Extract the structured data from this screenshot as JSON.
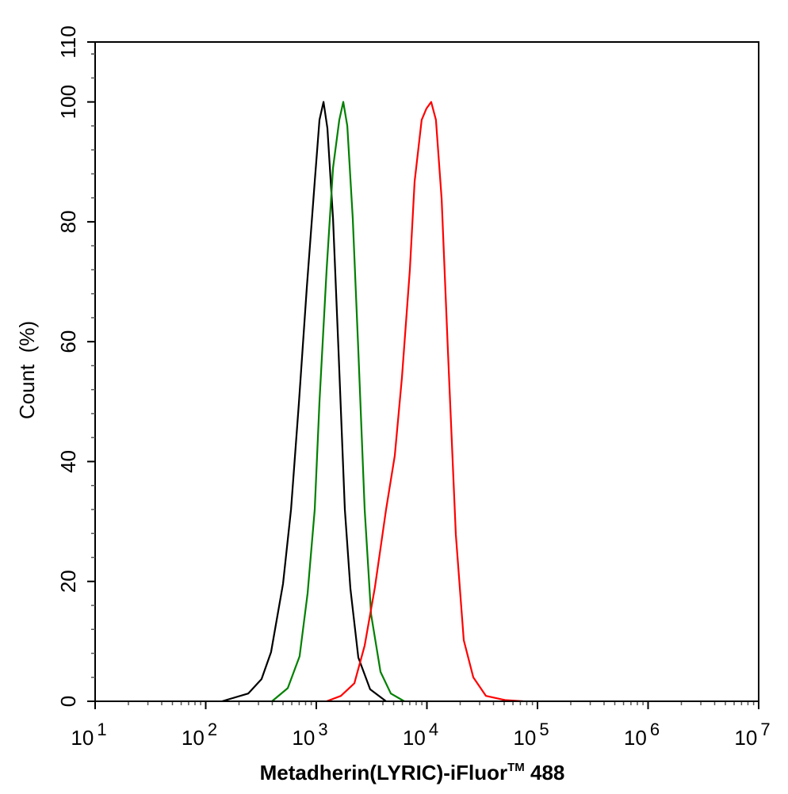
{
  "chart_data": {
    "type": "line",
    "title": "",
    "xlabel": "Metadherin(LYRIC)-iFluor",
    "xlabel_superscript": "TM",
    "xlabel_suffix": " 488",
    "ylabel": "Count  (%)",
    "xscale": "log",
    "xlim": [
      10,
      10000000
    ],
    "ylim": [
      0,
      110
    ],
    "x_ticks": [
      {
        "base": "10",
        "exp": "1",
        "value": 1
      },
      {
        "base": "10",
        "exp": "2",
        "value": 2
      },
      {
        "base": "10",
        "exp": "3",
        "value": 3
      },
      {
        "base": "10",
        "exp": "4",
        "value": 4
      },
      {
        "base": "10",
        "exp": "5",
        "value": 5
      },
      {
        "base": "10",
        "exp": "6",
        "value": 6
      },
      {
        "base": "10",
        "exp": "7",
        "value": 7
      }
    ],
    "y_ticks": [
      "0",
      "20",
      "40",
      "60",
      "80",
      "100",
      "110"
    ],
    "y_tick_values": [
      0,
      20,
      40,
      60,
      80,
      100,
      110
    ],
    "y_minor_step": 4,
    "grid": false,
    "legend": "none",
    "x_values_are": "log10 of fluorescence intensity",
    "series": [
      {
        "name": "black",
        "color": "#000000",
        "x": [
          2.147,
          2.384,
          2.505,
          2.591,
          2.699,
          2.771,
          2.842,
          2.914,
          2.986,
          3.029,
          3.065,
          3.1,
          3.151,
          3.201,
          3.258,
          3.308,
          3.38,
          3.487,
          3.631
        ],
        "y": [
          0,
          1.3,
          3.7,
          8.2,
          19.6,
          32,
          49.7,
          69,
          86.7,
          97,
          100,
          95.6,
          80.5,
          58.5,
          32,
          18.8,
          7.3,
          2,
          0
        ]
      },
      {
        "name": "green",
        "color": "#008000",
        "x": [
          2.599,
          2.742,
          2.849,
          2.921,
          2.986,
          3.029,
          3.093,
          3.151,
          3.208,
          3.244,
          3.28,
          3.33,
          3.38,
          3.437,
          3.495,
          3.581,
          3.674,
          3.796
        ],
        "y": [
          0,
          2.2,
          7.5,
          18,
          32,
          50,
          72,
          89,
          97,
          100,
          96,
          80.5,
          58.5,
          32,
          14.5,
          4.9,
          1.3,
          0
        ]
      },
      {
        "name": "red",
        "color": "#ff0000",
        "x": [
          3.093,
          3.222,
          3.344,
          3.437,
          3.53,
          3.631,
          3.71,
          3.774,
          3.846,
          3.889,
          3.953,
          3.996,
          4.039,
          4.082,
          4.133,
          4.19,
          4.262,
          4.333,
          4.419,
          4.534,
          4.706,
          4.871
        ],
        "y": [
          0,
          0.9,
          3,
          9.3,
          19,
          32,
          41,
          54,
          72,
          86.7,
          97,
          98.9,
          100,
          97,
          83.8,
          58.5,
          27.8,
          10.2,
          4,
          0.9,
          0.2,
          0
        ]
      }
    ]
  }
}
